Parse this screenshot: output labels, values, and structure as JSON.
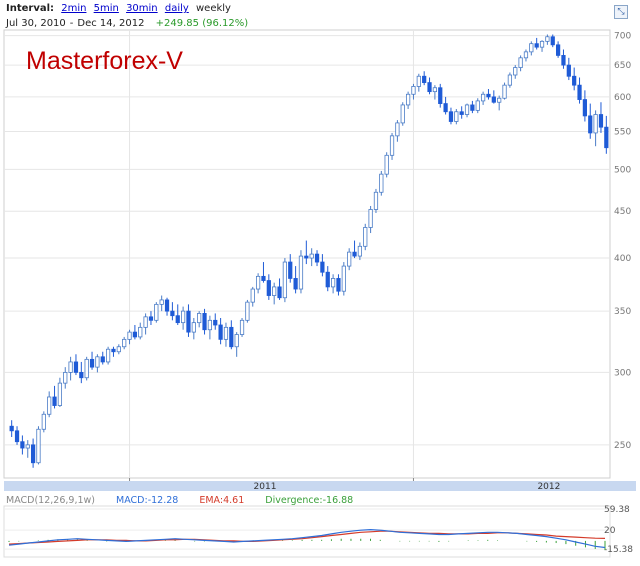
{
  "header": {
    "interval_label": "Interval:",
    "intervals": [
      "2min",
      "5min",
      "30min",
      "daily"
    ],
    "current_interval": "weekly",
    "date_from": "Jul 30, 2010",
    "date_sep": "-",
    "date_to": "Dec 14, 2012",
    "change": "+249.85 (96.12%)",
    "collapse_icon": "collapse-arrows-icon"
  },
  "watermark": "Masterforex-V",
  "macd_legend": {
    "params": "MACD(12,26,9,1w)",
    "macd": "MACD:-12.28",
    "ema": "EMA:4.61",
    "divergence": "Divergence:-16.88"
  },
  "colors": {
    "up": "#4a7cc7",
    "down": "#1f5bd6",
    "grid": "#e6e6e6",
    "timebar": "#c8d8f0",
    "macd": "#2f6fd8",
    "ema": "#d43b2a",
    "divergence": "#3aa03a"
  },
  "chart_data": [
    {
      "type": "candlestick",
      "ylim": [
        230,
        710
      ],
      "yticks": [
        250,
        300,
        350,
        400,
        450,
        500,
        550,
        600,
        650,
        700
      ],
      "xticks": [
        "2011",
        "2012"
      ],
      "candles": [
        [
          262,
          266,
          255,
          259
        ],
        [
          259,
          262,
          250,
          252
        ],
        [
          252,
          256,
          244,
          248
        ],
        [
          248,
          253,
          242,
          250
        ],
        [
          250,
          254,
          236,
          239
        ],
        [
          239,
          262,
          238,
          260
        ],
        [
          260,
          272,
          258,
          270
        ],
        [
          270,
          286,
          268,
          282
        ],
        [
          282,
          290,
          274,
          276
        ],
        [
          276,
          296,
          275,
          292
        ],
        [
          292,
          304,
          288,
          300
        ],
        [
          300,
          312,
          294,
          308
        ],
        [
          308,
          314,
          298,
          300
        ],
        [
          300,
          308,
          292,
          296
        ],
        [
          296,
          312,
          294,
          310
        ],
        [
          310,
          316,
          302,
          304
        ],
        [
          304,
          314,
          300,
          312
        ],
        [
          312,
          316,
          306,
          308
        ],
        [
          308,
          320,
          306,
          318
        ],
        [
          318,
          320,
          312,
          316
        ],
        [
          316,
          322,
          314,
          320
        ],
        [
          320,
          328,
          318,
          326
        ],
        [
          326,
          334,
          322,
          332
        ],
        [
          332,
          338,
          326,
          328
        ],
        [
          328,
          340,
          326,
          336
        ],
        [
          336,
          348,
          330,
          345
        ],
        [
          345,
          350,
          338,
          342
        ],
        [
          342,
          358,
          340,
          356
        ],
        [
          356,
          364,
          350,
          360
        ],
        [
          360,
          362,
          346,
          350
        ],
        [
          350,
          358,
          342,
          346
        ],
        [
          346,
          356,
          338,
          340
        ],
        [
          340,
          354,
          334,
          350
        ],
        [
          350,
          356,
          328,
          332
        ],
        [
          332,
          344,
          326,
          340
        ],
        [
          340,
          350,
          336,
          348
        ],
        [
          348,
          352,
          330,
          334
        ],
        [
          334,
          346,
          326,
          342
        ],
        [
          342,
          348,
          334,
          338
        ],
        [
          338,
          344,
          322,
          326
        ],
        [
          326,
          340,
          320,
          336
        ],
        [
          336,
          342,
          318,
          320
        ],
        [
          320,
          332,
          312,
          330
        ],
        [
          330,
          344,
          328,
          342
        ],
        [
          342,
          360,
          340,
          358
        ],
        [
          358,
          372,
          354,
          370
        ],
        [
          370,
          385,
          366,
          382
        ],
        [
          382,
          396,
          376,
          378
        ],
        [
          378,
          384,
          360,
          364
        ],
        [
          364,
          376,
          356,
          372
        ],
        [
          372,
          380,
          360,
          362
        ],
        [
          362,
          400,
          358,
          396
        ],
        [
          396,
          404,
          376,
          380
        ],
        [
          380,
          392,
          366,
          370
        ],
        [
          370,
          408,
          366,
          402
        ],
        [
          402,
          418,
          394,
          400
        ],
        [
          400,
          410,
          392,
          404
        ],
        [
          404,
          408,
          392,
          396
        ],
        [
          396,
          404,
          382,
          386
        ],
        [
          386,
          392,
          368,
          372
        ],
        [
          372,
          384,
          366,
          380
        ],
        [
          380,
          384,
          364,
          368
        ],
        [
          368,
          396,
          364,
          392
        ],
        [
          392,
          410,
          388,
          406
        ],
        [
          406,
          418,
          400,
          402
        ],
        [
          402,
          416,
          398,
          412
        ],
        [
          412,
          436,
          408,
          432
        ],
        [
          432,
          456,
          426,
          452
        ],
        [
          452,
          476,
          448,
          472
        ],
        [
          472,
          498,
          468,
          494
        ],
        [
          494,
          522,
          490,
          518
        ],
        [
          518,
          548,
          512,
          544
        ],
        [
          544,
          566,
          536,
          562
        ],
        [
          562,
          592,
          558,
          588
        ],
        [
          588,
          608,
          582,
          604
        ],
        [
          604,
          620,
          596,
          616
        ],
        [
          616,
          636,
          608,
          632
        ],
        [
          632,
          640,
          618,
          622
        ],
        [
          622,
          630,
          604,
          608
        ],
        [
          608,
          618,
          596,
          614
        ],
        [
          614,
          620,
          584,
          590
        ],
        [
          590,
          600,
          574,
          578
        ],
        [
          578,
          584,
          560,
          564
        ],
        [
          564,
          582,
          560,
          578
        ],
        [
          578,
          586,
          568,
          574
        ],
        [
          574,
          590,
          570,
          588
        ],
        [
          588,
          594,
          576,
          580
        ],
        [
          580,
          598,
          576,
          594
        ],
        [
          594,
          608,
          588,
          604
        ],
        [
          604,
          612,
          596,
          600
        ],
        [
          600,
          610,
          590,
          592
        ],
        [
          592,
          602,
          580,
          598
        ],
        [
          598,
          622,
          596,
          618
        ],
        [
          618,
          638,
          614,
          634
        ],
        [
          634,
          650,
          628,
          646
        ],
        [
          646,
          666,
          640,
          662
        ],
        [
          662,
          676,
          656,
          672
        ],
        [
          672,
          690,
          666,
          686
        ],
        [
          686,
          696,
          676,
          680
        ],
        [
          680,
          692,
          672,
          690
        ],
        [
          690,
          702,
          684,
          698
        ],
        [
          698,
          702,
          680,
          684
        ],
        [
          684,
          690,
          662,
          666
        ],
        [
          666,
          676,
          644,
          650
        ],
        [
          650,
          662,
          626,
          632
        ],
        [
          632,
          646,
          610,
          618
        ],
        [
          618,
          630,
          590,
          596
        ],
        [
          596,
          610,
          564,
          572
        ],
        [
          572,
          590,
          540,
          548
        ],
        [
          548,
          580,
          530,
          574
        ],
        [
          574,
          592,
          548,
          556
        ],
        [
          556,
          572,
          520,
          528
        ]
      ]
    },
    {
      "type": "line",
      "series": [
        {
          "name": "MACD",
          "values": [
            -8,
            -6,
            -4,
            -2,
            0,
            2,
            3,
            4,
            3,
            2,
            1,
            0,
            -1,
            0,
            1,
            2,
            3,
            4,
            3,
            2,
            1,
            0,
            -1,
            -2,
            -1,
            0,
            1,
            2,
            3,
            4,
            6,
            8,
            10,
            13,
            16,
            18,
            20,
            21,
            20,
            18,
            16,
            15,
            14,
            13,
            12,
            12,
            13,
            14,
            15,
            16,
            16,
            15,
            14,
            12,
            10,
            8,
            5,
            2,
            -2,
            -6,
            -10,
            -12.28
          ]
        },
        {
          "name": "EMA",
          "values": [
            -6,
            -5,
            -4,
            -3,
            -2,
            -1,
            0,
            1,
            2,
            2,
            2,
            1,
            1,
            0,
            0,
            1,
            2,
            2,
            3,
            3,
            2,
            1,
            0,
            0,
            -1,
            -1,
            0,
            1,
            2,
            3,
            4,
            6,
            8,
            10,
            12,
            14,
            16,
            17,
            18,
            18,
            17,
            16,
            15,
            14,
            14,
            13,
            13,
            13,
            14,
            14,
            15,
            15,
            14,
            13,
            12,
            11,
            9,
            8,
            7,
            6,
            5,
            4.61
          ]
        },
        {
          "name": "Divergence",
          "values": [
            -2,
            -1,
            0,
            1,
            2,
            3,
            3,
            3,
            1,
            0,
            -1,
            -1,
            -2,
            0,
            1,
            1,
            1,
            2,
            0,
            -1,
            -1,
            -1,
            -1,
            -2,
            0,
            1,
            1,
            1,
            1,
            1,
            2,
            2,
            2,
            3,
            4,
            4,
            4,
            4,
            2,
            0,
            -1,
            -1,
            -1,
            -1,
            -2,
            -1,
            0,
            1,
            1,
            2,
            1,
            0,
            0,
            -1,
            -2,
            -3,
            -4,
            -6,
            -9,
            -12,
            -15,
            -16.88
          ]
        }
      ],
      "ylim": [
        -30,
        65
      ],
      "yticks": [
        59.38,
        20,
        -15.38
      ]
    }
  ]
}
